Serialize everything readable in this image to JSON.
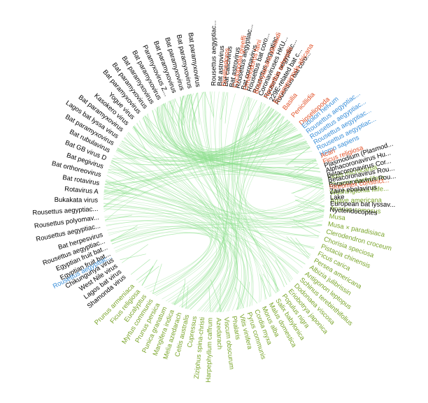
{
  "colors": {
    "virus": "#000000",
    "pathogen": "#e2532a",
    "host": "#3a8fd9",
    "plant": "#7aa52b",
    "edge": "#8fe08f"
  },
  "sections": [
    {
      "key": "viruses_top",
      "color_key": "virus",
      "start_deg": 270.0,
      "end_deg": 302.5,
      "labels": [
        "Rousettus aegyptiac...",
        "Bat astrovirus",
        "Bat calicivirus",
        "Bat astrovirus",
        "Rousettus aegyptiac...",
        "Bat coronavirus",
        "Rousettus bat coro...",
        "Rousettus aegyptiac...",
        "Coronaviruses HKU...",
        "Rousettus aegyptiac...",
        "229E-related bat c...",
        "Rousettus bat coro..."
      ]
    },
    {
      "key": "viruses_left_dense",
      "color_key": "virus",
      "start_deg": 210.0,
      "end_deg": 262.0,
      "labels": [
        "Bat paramyxovirus",
        "Lagos bat lyssa virus",
        "Bat paramyxovirus",
        "Kasokero virus",
        "Yogue virus",
        "Bat paramyxovirus",
        "Bat paramyxovirus",
        "Bat paramyxovirus",
        "Bat paramyxovirus",
        "Paramyxovirus Z...",
        "Bat paramyxovirus",
        "Bat paramyxovirus",
        "Bat paramyxovirus",
        "Bat paramyxovirus"
      ]
    },
    {
      "key": "viruses_left",
      "color_key": "virus",
      "start_deg": 168.0,
      "end_deg": 206.0,
      "labels": [
        "Rousettus aegyptiac...",
        "Rousettus polyomav...",
        "Rousettus aegyptiac...",
        "Bukakata virus",
        "Rotavirus A",
        "Bat rotavirus",
        "Bat orthoreovirus",
        "Bat pegivirus",
        "Bat GB virus D",
        "Bat rubulavirus"
      ]
    },
    {
      "key": "viruses_lower_left",
      "color_key": "virus",
      "start_deg": 140.0,
      "end_deg": 163.5,
      "labels": [
        "Shamonda virus",
        "Lagos bat virus",
        "West Nile virus",
        "Chikungunya virus",
        "Egyptian fruit bat...",
        "Egyptian fruit bat...",
        "Rousettus aegyptiac...",
        "Bat herpesvirus"
      ]
    },
    {
      "key": "host_lower_left",
      "color_key": "host",
      "start_deg": 152.0,
      "end_deg": 152.0,
      "labels": [
        "Rousettus aegyptiac..."
      ]
    },
    {
      "key": "plants",
      "color_key": "plant",
      "start_deg": -12.0,
      "end_deg": 134.0,
      "labels": [
        "Ficus microcarpa",
        "Phoenix dactylifera",
        "Washingtonia filife...",
        "Agave americana",
        "Ananas comosus",
        "Musa",
        "Musa × paradisiaca",
        "Clerodendron croceum",
        "Chorisia speciosa",
        "Pistacia chinensis",
        "Ficus carica",
        "Persea americana",
        "Albizia julibrissin",
        "Antigonon leptopus",
        "Schinus terebinthifolius",
        "Dodonaea viscosa",
        "Eriobotrya japonica",
        "Populus nigra",
        "Salix babylonica",
        "Malus domestica",
        "Morus alba",
        "Cordia myxa",
        "Pyrus communis",
        "Vitis vinifera",
        "Phalaris",
        "Viscum obscurum",
        "Azedarach",
        "Harpephyllum caffrum",
        "Ziziphus spina-christi",
        "Cupressus",
        "Celtis australis",
        "Melia azedarach",
        "Mangifera indica",
        "Punica granatum",
        "Prunus persica",
        "Myrtus communis",
        "Eucalyptus",
        "Ficus religiosa",
        "Prunus armeniaca"
      ]
    },
    {
      "key": "pathogens",
      "color_key": "pathogen",
      "start_deg": 275.0,
      "end_deg": 318.0,
      "labels": [
        "Ornithodoros",
        "Cyclopodia greeffi",
        "Ornithodoros faini",
        "Brachytarsina alluaudi",
        "Nycteribia schmidlii",
        "Eucampsipoda africana",
        "Basilia",
        "Penicillidia",
        "Dipseliopoda"
      ]
    },
    {
      "key": "hosts_right_upper",
      "color_key": "host",
      "start_deg": 320.0,
      "end_deg": 336.0,
      "labels": [
        "Eidolon helvum",
        "Rousettus aegyptiac...",
        "Rousettus aegyptiac...",
        "Rousettus aegyptiac...",
        "Rousettus aegyptiac...",
        "Homo sapiens"
      ]
    },
    {
      "key": "pathogen_right",
      "color_key": "pathogen",
      "start_deg": 337.0,
      "end_deg": 340.0,
      "labels": [
        "Acari",
        "Ficus religiosa"
      ]
    },
    {
      "key": "viruses_right",
      "color_key": "virus",
      "start_deg": 342.0,
      "end_deg": 352.0,
      "labels": [
        "Plasmodium (Plasmod...",
        "Alphacoronavirus Hu...",
        "Betacoronavirus Cor...",
        "Betacoronavirus Rou...",
        "Betacoronavirus Rou..."
      ]
    },
    {
      "key": "pathogen_right_2",
      "color_key": "pathogen",
      "start_deg": 353.0,
      "end_deg": 353.0,
      "labels": [
        "Streomex constrict..."
      ]
    },
    {
      "key": "viruses_right_lower",
      "color_key": "virus",
      "start_deg": 355.0,
      "end_deg": 364.0,
      "labels": [
        "Zaire ebolavirus",
        "Lake",
        "European bat lyssav...",
        "Nycteridocoptes"
      ]
    }
  ]
}
